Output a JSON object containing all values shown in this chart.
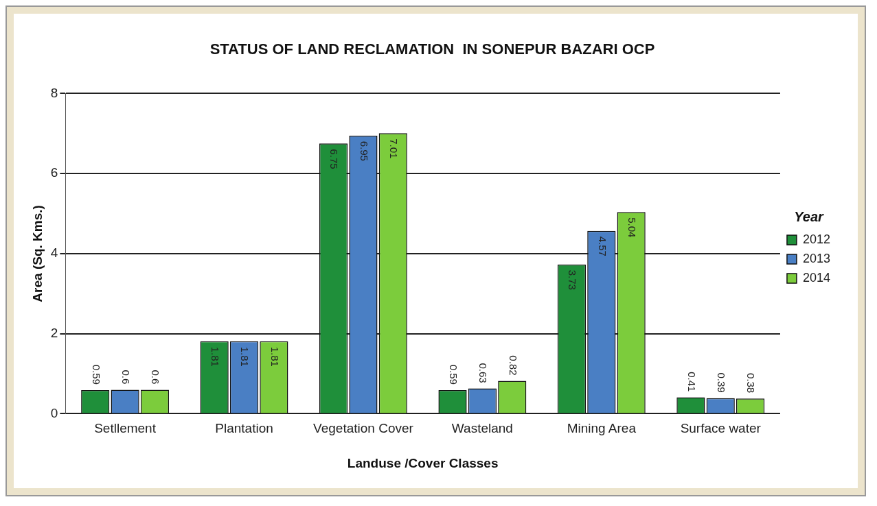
{
  "chart_data": {
    "type": "bar",
    "title": "STATUS OF LAND RECLAMATION  IN SONEPUR BAZARI OCP",
    "xlabel": "Landuse /Cover Classes",
    "ylabel": "Area (Sq. Kms.)",
    "legend_title": "Year",
    "categories": [
      "Setllement",
      "Plantation",
      "Vegetation Cover",
      "Wasteland",
      "Mining Area",
      "Surface water"
    ],
    "series": [
      {
        "name": "2012",
        "color": "#1f8f3a",
        "values": [
          0.59,
          1.81,
          6.75,
          0.59,
          3.73,
          0.41
        ]
      },
      {
        "name": "2013",
        "color": "#4a7fc4",
        "values": [
          0.6,
          1.81,
          6.95,
          0.63,
          4.57,
          0.39
        ]
      },
      {
        "name": "2014",
        "color": "#7ccc3c",
        "values": [
          0.6,
          1.81,
          7.01,
          0.82,
          5.04,
          0.38
        ]
      }
    ],
    "ylim": [
      0,
      8
    ],
    "yticks": [
      0,
      2,
      4,
      6,
      8
    ],
    "grid": "y",
    "legend": "right",
    "data_labels": true
  }
}
